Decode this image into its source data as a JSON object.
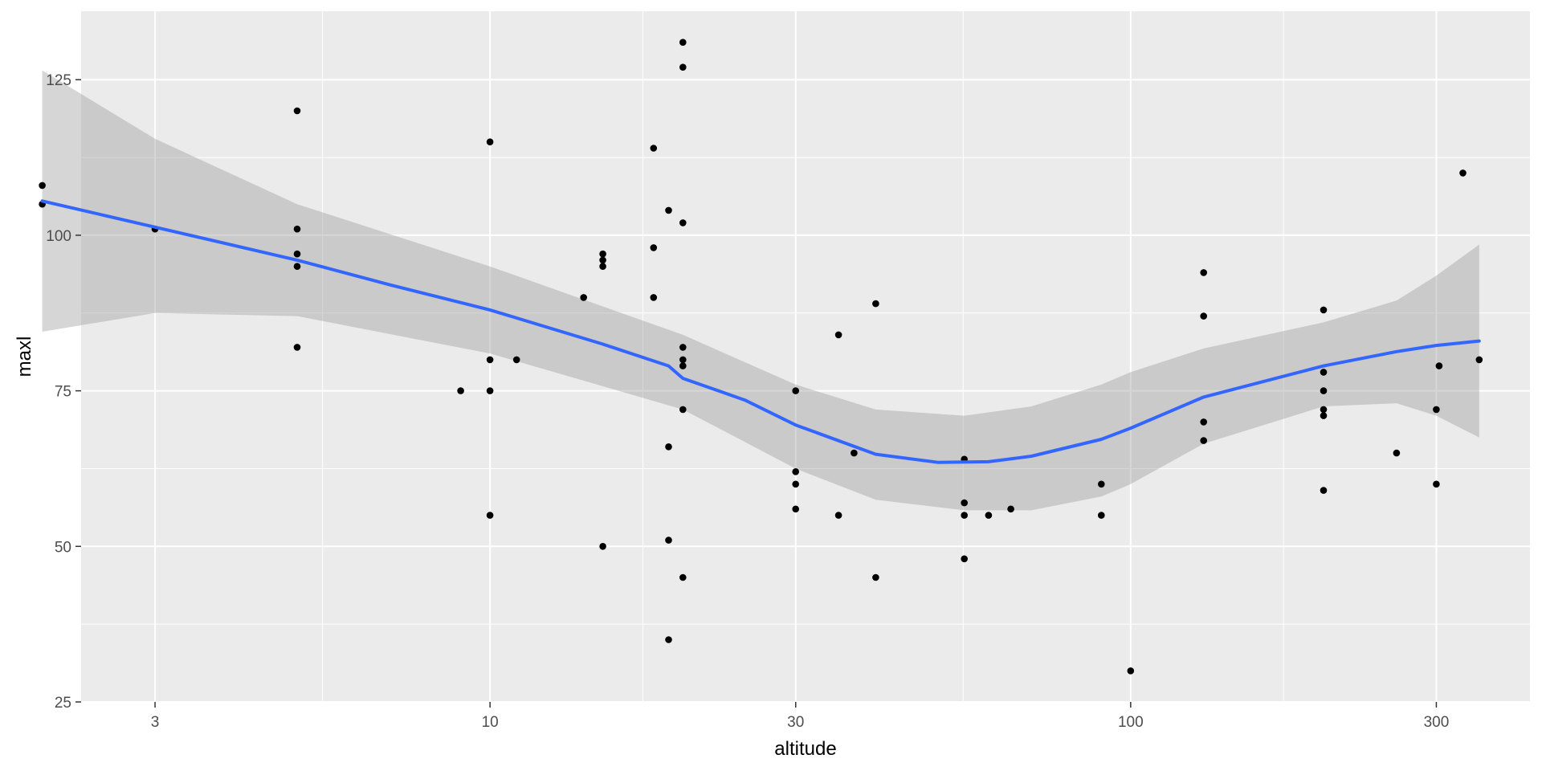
{
  "chart_data": {
    "type": "scatter",
    "xlabel": "altitude",
    "ylabel": "maxl",
    "x_scale": "log10",
    "xlim": [
      2.3,
      420
    ],
    "ylim": [
      25,
      136
    ],
    "x_ticks": [
      3,
      10,
      30,
      100,
      300
    ],
    "x_tick_labels": [
      "3",
      "10",
      "30",
      "100",
      "300"
    ],
    "y_ticks": [
      25,
      50,
      75,
      100,
      125
    ],
    "y_tick_labels": [
      "25",
      "50",
      "75",
      "100",
      "125"
    ],
    "grid": true,
    "colors": {
      "panel": "#ebebeb",
      "grid_major": "#ffffff",
      "points": "#000000",
      "smooth_line": "#3366ff",
      "ribbon": "#999999"
    },
    "points": [
      {
        "x": 2,
        "y": 108
      },
      {
        "x": 2,
        "y": 105
      },
      {
        "x": 3,
        "y": 101
      },
      {
        "x": 5,
        "y": 120
      },
      {
        "x": 5,
        "y": 101
      },
      {
        "x": 5,
        "y": 97
      },
      {
        "x": 5,
        "y": 95
      },
      {
        "x": 5,
        "y": 82
      },
      {
        "x": 9,
        "y": 75
      },
      {
        "x": 10,
        "y": 115
      },
      {
        "x": 10,
        "y": 80
      },
      {
        "x": 10,
        "y": 75
      },
      {
        "x": 10,
        "y": 55
      },
      {
        "x": 11,
        "y": 80
      },
      {
        "x": 14,
        "y": 90
      },
      {
        "x": 15,
        "y": 97
      },
      {
        "x": 15,
        "y": 96
      },
      {
        "x": 15,
        "y": 95
      },
      {
        "x": 15,
        "y": 50
      },
      {
        "x": 18,
        "y": 114
      },
      {
        "x": 18,
        "y": 98
      },
      {
        "x": 18,
        "y": 90
      },
      {
        "x": 19,
        "y": 104
      },
      {
        "x": 19,
        "y": 66
      },
      {
        "x": 19,
        "y": 51
      },
      {
        "x": 19,
        "y": 35
      },
      {
        "x": 20,
        "y": 131
      },
      {
        "x": 20,
        "y": 127
      },
      {
        "x": 20,
        "y": 102
      },
      {
        "x": 20,
        "y": 82
      },
      {
        "x": 20,
        "y": 80
      },
      {
        "x": 20,
        "y": 79
      },
      {
        "x": 20,
        "y": 72
      },
      {
        "x": 20,
        "y": 45
      },
      {
        "x": 30,
        "y": 75
      },
      {
        "x": 30,
        "y": 62
      },
      {
        "x": 30,
        "y": 60
      },
      {
        "x": 30,
        "y": 56
      },
      {
        "x": 35,
        "y": 84
      },
      {
        "x": 35,
        "y": 55
      },
      {
        "x": 37,
        "y": 65
      },
      {
        "x": 40,
        "y": 89
      },
      {
        "x": 40,
        "y": 45
      },
      {
        "x": 55,
        "y": 64
      },
      {
        "x": 55,
        "y": 57
      },
      {
        "x": 55,
        "y": 55
      },
      {
        "x": 55,
        "y": 48
      },
      {
        "x": 60,
        "y": 55
      },
      {
        "x": 65,
        "y": 56
      },
      {
        "x": 90,
        "y": 60
      },
      {
        "x": 90,
        "y": 55
      },
      {
        "x": 100,
        "y": 30
      },
      {
        "x": 130,
        "y": 94
      },
      {
        "x": 130,
        "y": 87
      },
      {
        "x": 130,
        "y": 70
      },
      {
        "x": 130,
        "y": 67
      },
      {
        "x": 200,
        "y": 88
      },
      {
        "x": 200,
        "y": 78
      },
      {
        "x": 200,
        "y": 75
      },
      {
        "x": 200,
        "y": 72
      },
      {
        "x": 200,
        "y": 71
      },
      {
        "x": 200,
        "y": 59
      },
      {
        "x": 260,
        "y": 65
      },
      {
        "x": 300,
        "y": 72
      },
      {
        "x": 300,
        "y": 60
      },
      {
        "x": 303,
        "y": 79
      },
      {
        "x": 330,
        "y": 110
      },
      {
        "x": 350,
        "y": 80
      }
    ],
    "smooth": {
      "method": "loess",
      "fit": [
        {
          "x": 2,
          "y": 105.5
        },
        {
          "x": 3,
          "y": 101.3
        },
        {
          "x": 5,
          "y": 96.0
        },
        {
          "x": 7,
          "y": 92.0
        },
        {
          "x": 10,
          "y": 88.0
        },
        {
          "x": 15,
          "y": 82.5
        },
        {
          "x": 19,
          "y": 79.0
        },
        {
          "x": 20,
          "y": 77.0
        },
        {
          "x": 25,
          "y": 73.5
        },
        {
          "x": 30,
          "y": 69.5
        },
        {
          "x": 40,
          "y": 64.8
        },
        {
          "x": 50,
          "y": 63.5
        },
        {
          "x": 60,
          "y": 63.6
        },
        {
          "x": 70,
          "y": 64.5
        },
        {
          "x": 90,
          "y": 67.2
        },
        {
          "x": 100,
          "y": 69.0
        },
        {
          "x": 130,
          "y": 74.0
        },
        {
          "x": 200,
          "y": 79.0
        },
        {
          "x": 260,
          "y": 81.3
        },
        {
          "x": 300,
          "y": 82.3
        },
        {
          "x": 350,
          "y": 83.0
        }
      ],
      "ci_lower": [
        {
          "x": 2,
          "y": 84.5
        },
        {
          "x": 3,
          "y": 87.5
        },
        {
          "x": 5,
          "y": 87.0
        },
        {
          "x": 10,
          "y": 81.0
        },
        {
          "x": 20,
          "y": 72.0
        },
        {
          "x": 30,
          "y": 62.5
        },
        {
          "x": 40,
          "y": 57.5
        },
        {
          "x": 55,
          "y": 55.8
        },
        {
          "x": 70,
          "y": 55.8
        },
        {
          "x": 90,
          "y": 58.0
        },
        {
          "x": 100,
          "y": 60.0
        },
        {
          "x": 130,
          "y": 66.5
        },
        {
          "x": 200,
          "y": 72.5
        },
        {
          "x": 260,
          "y": 73.0
        },
        {
          "x": 300,
          "y": 71.0
        },
        {
          "x": 350,
          "y": 67.5
        }
      ],
      "ci_upper": [
        {
          "x": 2,
          "y": 126.5
        },
        {
          "x": 3,
          "y": 115.5
        },
        {
          "x": 5,
          "y": 105.0
        },
        {
          "x": 10,
          "y": 95.0
        },
        {
          "x": 20,
          "y": 84.0
        },
        {
          "x": 30,
          "y": 76.0
        },
        {
          "x": 40,
          "y": 72.0
        },
        {
          "x": 55,
          "y": 71.0
        },
        {
          "x": 70,
          "y": 72.5
        },
        {
          "x": 90,
          "y": 76.0
        },
        {
          "x": 100,
          "y": 78.0
        },
        {
          "x": 130,
          "y": 81.8
        },
        {
          "x": 200,
          "y": 86.0
        },
        {
          "x": 260,
          "y": 89.5
        },
        {
          "x": 300,
          "y": 93.5
        },
        {
          "x": 350,
          "y": 98.5
        }
      ]
    }
  }
}
